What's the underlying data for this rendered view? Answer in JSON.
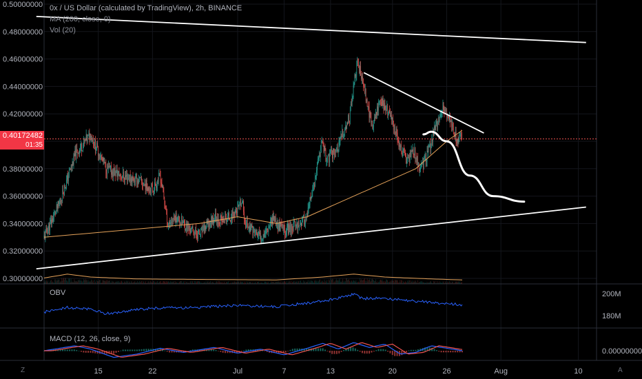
{
  "header": {
    "title": "0x / US Dollar (calculated by TradingView), 2h, BINANCE",
    "ma_label": "MA (200, close, 0)",
    "vol_label": "Vol (20)"
  },
  "current_price": {
    "value": "0.40172482",
    "countdown": "01:35",
    "color": "#f23645"
  },
  "panes": {
    "obv_label": "OBV",
    "obv_ticks": [
      "200M",
      "180M"
    ],
    "macd_label": "MACD (12, 26, close, 9)",
    "macd_ticks": [
      "0.00000000"
    ]
  },
  "corners": {
    "left": "Z",
    "right": "A"
  },
  "colors": {
    "up": "#26a69a",
    "down": "#ef5350",
    "ma": "#e6a35a",
    "obv": "#2962ff",
    "macd": "#2962ff",
    "signal": "#ef5350",
    "drawing": "#ffffff"
  },
  "chart_data": {
    "type": "candlestick",
    "price_axis": {
      "ticks": [
        "0.50000000",
        "0.48000000",
        "0.46000000",
        "0.44000000",
        "0.42000000",
        "0.40000000",
        "0.38000000",
        "0.36000000",
        "0.34000000",
        "0.32000000",
        "0.30000000"
      ],
      "ylim": [
        0.296,
        0.503
      ]
    },
    "x_axis": {
      "tick_labels": [
        "15",
        "22",
        "Jul",
        "7",
        "13",
        "20",
        "26",
        "Aug",
        "10"
      ]
    },
    "price_path": [
      [
        0,
        0.33
      ],
      [
        2,
        0.355
      ],
      [
        4,
        0.39
      ],
      [
        6,
        0.405
      ],
      [
        8,
        0.38
      ],
      [
        10,
        0.375
      ],
      [
        12,
        0.372
      ],
      [
        14,
        0.365
      ],
      [
        15,
        0.375
      ],
      [
        16,
        0.34
      ],
      [
        17,
        0.345
      ],
      [
        18,
        0.34
      ],
      [
        19,
        0.335
      ],
      [
        20,
        0.332
      ],
      [
        21,
        0.338
      ],
      [
        22,
        0.345
      ],
      [
        23,
        0.342
      ],
      [
        24,
        0.345
      ],
      [
        25,
        0.35
      ],
      [
        25.6,
        0.355
      ],
      [
        26,
        0.34
      ],
      [
        27,
        0.335
      ],
      [
        28,
        0.33
      ],
      [
        29,
        0.338
      ],
      [
        29.5,
        0.345
      ],
      [
        30,
        0.34
      ],
      [
        31,
        0.335
      ],
      [
        32,
        0.338
      ],
      [
        33,
        0.34
      ],
      [
        34,
        0.345
      ],
      [
        34.5,
        0.36
      ],
      [
        35,
        0.37
      ],
      [
        35.5,
        0.39
      ],
      [
        36,
        0.4
      ],
      [
        36.5,
        0.385
      ],
      [
        37,
        0.39
      ],
      [
        38,
        0.395
      ],
      [
        38.5,
        0.405
      ],
      [
        39,
        0.41
      ],
      [
        39.5,
        0.42
      ],
      [
        40,
        0.44
      ],
      [
        40.5,
        0.46
      ],
      [
        41,
        0.445
      ],
      [
        41.5,
        0.435
      ],
      [
        42,
        0.42
      ],
      [
        42.5,
        0.41
      ],
      [
        43,
        0.425
      ],
      [
        43.5,
        0.43
      ],
      [
        44,
        0.425
      ],
      [
        44.5,
        0.42
      ],
      [
        45,
        0.415
      ],
      [
        45.5,
        0.405
      ],
      [
        46,
        0.395
      ],
      [
        46.5,
        0.39
      ],
      [
        47,
        0.385
      ],
      [
        47.5,
        0.395
      ],
      [
        48,
        0.39
      ],
      [
        48.5,
        0.38
      ],
      [
        49,
        0.385
      ],
      [
        49.5,
        0.39
      ],
      [
        50,
        0.4
      ],
      [
        50.5,
        0.41
      ],
      [
        51,
        0.415
      ],
      [
        51.5,
        0.425
      ],
      [
        52,
        0.42
      ],
      [
        52.5,
        0.415
      ],
      [
        53,
        0.405
      ],
      [
        53.5,
        0.4
      ],
      [
        54,
        0.402
      ]
    ],
    "ma": [
      [
        0,
        0.33
      ],
      [
        10,
        0.335
      ],
      [
        20,
        0.34
      ],
      [
        25,
        0.345
      ],
      [
        30,
        0.34
      ],
      [
        34,
        0.345
      ],
      [
        38,
        0.355
      ],
      [
        42,
        0.365
      ],
      [
        46,
        0.375
      ],
      [
        48,
        0.38
      ],
      [
        50,
        0.39
      ],
      [
        52,
        0.4
      ],
      [
        54,
        0.408
      ]
    ],
    "volume_ma": [
      [
        0,
        0.4
      ],
      [
        3,
        0.8
      ],
      [
        6,
        0.5
      ],
      [
        12,
        0.3
      ],
      [
        20,
        0.25
      ],
      [
        30,
        0.2
      ],
      [
        36,
        0.5
      ],
      [
        40,
        0.8
      ],
      [
        44,
        0.5
      ],
      [
        50,
        0.3
      ],
      [
        54,
        0.2
      ]
    ],
    "obv": [
      [
        0,
        0.45
      ],
      [
        3,
        0.62
      ],
      [
        6,
        0.55
      ],
      [
        8,
        0.4
      ],
      [
        10,
        0.45
      ],
      [
        12,
        0.55
      ],
      [
        15,
        0.6
      ],
      [
        20,
        0.62
      ],
      [
        25,
        0.7
      ],
      [
        30,
        0.65
      ],
      [
        33,
        0.75
      ],
      [
        36,
        0.85
      ],
      [
        38,
        0.95
      ],
      [
        40,
        1.1
      ],
      [
        41,
        0.95
      ],
      [
        44,
        0.95
      ],
      [
        46,
        0.9
      ],
      [
        50,
        0.8
      ],
      [
        54,
        0.72
      ]
    ],
    "macd": [
      [
        0,
        0.0
      ],
      [
        4,
        0.6
      ],
      [
        6,
        0.2
      ],
      [
        9,
        -0.8
      ],
      [
        12,
        -0.4
      ],
      [
        15,
        0.3
      ],
      [
        18,
        -0.2
      ],
      [
        22,
        0.4
      ],
      [
        25,
        -0.3
      ],
      [
        28,
        0.2
      ],
      [
        31,
        -0.5
      ],
      [
        34,
        0.3
      ],
      [
        36,
        0.9
      ],
      [
        38,
        0.2
      ],
      [
        40,
        1.0
      ],
      [
        42,
        0.4
      ],
      [
        44,
        0.8
      ],
      [
        46,
        -0.4
      ],
      [
        48,
        -0.2
      ],
      [
        50,
        0.6
      ],
      [
        52,
        0.3
      ],
      [
        54,
        0.0
      ]
    ],
    "drawings": [
      {
        "type": "trendline",
        "name": "upper-resistance",
        "points": [
          [
            -1,
            0.491
          ],
          [
            70,
            0.472
          ]
        ]
      },
      {
        "type": "trendline",
        "name": "lower-support",
        "points": [
          [
            -1,
            0.307
          ],
          [
            70,
            0.352
          ]
        ]
      },
      {
        "type": "trendline",
        "name": "descending-resistance",
        "points": [
          [
            41.3,
            0.45
          ],
          [
            56.8,
            0.406
          ]
        ]
      },
      {
        "type": "projection",
        "name": "bearish-projection",
        "points": [
          [
            49,
            0.405
          ],
          [
            50,
            0.407
          ],
          [
            52,
            0.4
          ],
          [
            55,
            0.375
          ],
          [
            58,
            0.36
          ],
          [
            62,
            0.356
          ]
        ]
      }
    ]
  }
}
